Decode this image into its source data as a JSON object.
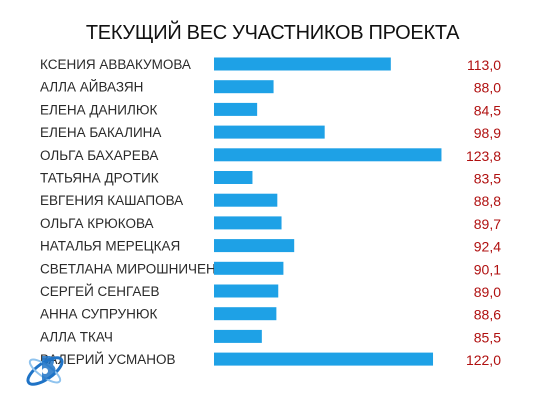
{
  "title": "ТЕКУЩИЙ ВЕС УЧАСТНИКОВ ПРОЕКТА",
  "colors": {
    "bar": "#1ea1e6",
    "value_text": "#b01010",
    "logo": "#1f73c6"
  },
  "chart_data": {
    "type": "bar",
    "orientation": "horizontal",
    "title": "ТЕКУЩИЙ ВЕС УЧАСТНИКОВ ПРОЕКТА",
    "categories": [
      "КСЕНИЯ АВВАКУМОВА",
      "АЛЛА АЙВАЗЯН",
      "ЕЛЕНА ДАНИЛЮК",
      "ЕЛЕНА БАКАЛИНА",
      "ОЛЬГА БАХАРЕВА",
      "ТАТЬЯНА ДРОТИК",
      "ЕВГЕНИЯ КАШАПОВА",
      "ОЛЬГА КРЮКОВА",
      "НАТАЛЬЯ МЕРЕЦКАЯ",
      "СВЕТЛАНА МИРОШНИЧЕНКО",
      "СЕРГЕЙ СЕНГАЕВ",
      "АННА СУПРУНЮК",
      "АЛЛА ТКАЧ",
      "ВАЛЕРИЙ УСМАНОВ"
    ],
    "values": [
      113.0,
      88.0,
      84.5,
      98.9,
      123.8,
      83.5,
      88.8,
      89.7,
      92.4,
      90.1,
      89.0,
      88.6,
      85.5,
      122.0
    ],
    "value_labels": [
      "113,0",
      "88,0",
      "84,5",
      "98,9",
      "123,8",
      "83,5",
      "88,8",
      "89,7",
      "92,4",
      "90,1",
      "89,0",
      "88,6",
      "85,5",
      "122,0"
    ],
    "xlabel": "",
    "ylabel": "",
    "grid": false,
    "legend": "none"
  }
}
